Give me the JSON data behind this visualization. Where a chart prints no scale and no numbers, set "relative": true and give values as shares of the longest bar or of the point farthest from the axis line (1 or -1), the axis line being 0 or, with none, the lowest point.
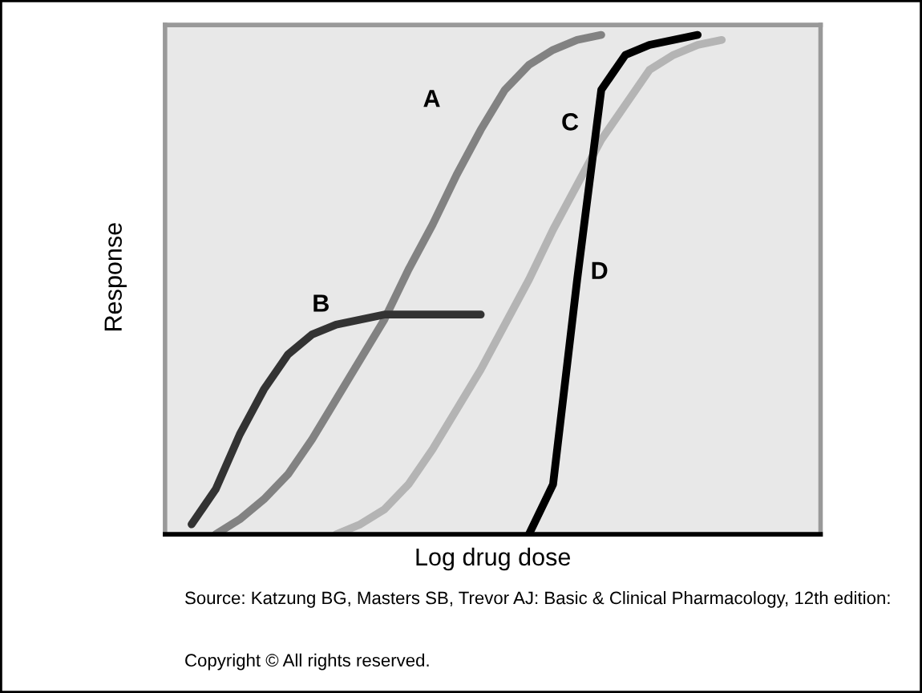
{
  "chart_data": {
    "type": "line",
    "relative": true,
    "xlabel": "Log drug dose",
    "ylabel": "Response",
    "categories": [
      null,
      null,
      null,
      null,
      null,
      null,
      null,
      null,
      null,
      null,
      null,
      null,
      null,
      null,
      null,
      null,
      null,
      null,
      null,
      null,
      null,
      null,
      null,
      null,
      null,
      null,
      null,
      null
    ],
    "series": [
      {
        "name": "A",
        "color": "#828282",
        "values": [
          null,
          null,
          0,
          0.03,
          0.07,
          0.12,
          0.19,
          0.27,
          0.35,
          0.43,
          0.53,
          0.62,
          0.72,
          0.81,
          0.89,
          0.94,
          0.97,
          0.99,
          1,
          null,
          null,
          null,
          null,
          null,
          null,
          null,
          null,
          null
        ]
      },
      {
        "name": "B",
        "color": "#333333",
        "values": [
          null,
          0.02,
          0.09,
          0.2,
          0.29,
          0.36,
          0.4,
          0.42,
          0.43,
          0.44,
          0.44,
          0.44,
          0.44,
          0.44,
          null,
          null,
          null,
          null,
          null,
          null,
          null,
          null,
          null,
          null,
          null,
          null,
          null,
          null
        ]
      },
      {
        "name": "C",
        "color": "#b4b4b4",
        "values": [
          null,
          null,
          null,
          null,
          null,
          null,
          null,
          0,
          0.02,
          0.05,
          0.1,
          0.17,
          0.25,
          0.33,
          0.42,
          0.51,
          0.61,
          0.7,
          0.79,
          0.86,
          0.93,
          0.96,
          0.98,
          0.99,
          null,
          null,
          null,
          null
        ]
      },
      {
        "name": "D",
        "color": "#000000",
        "values": [
          null,
          null,
          null,
          null,
          null,
          null,
          null,
          null,
          null,
          null,
          null,
          null,
          null,
          null,
          null,
          0,
          0.1,
          0.51,
          0.89,
          0.96,
          0.98,
          0.99,
          1,
          null,
          null,
          null,
          null,
          null
        ]
      }
    ],
    "legend": false,
    "annotations": [
      "Source: Katzung BG, Masters SB, Trevor AJ: Basic & Clinical Pharmacology, 12th edition:",
      "Copyright © All rights reserved."
    ]
  }
}
